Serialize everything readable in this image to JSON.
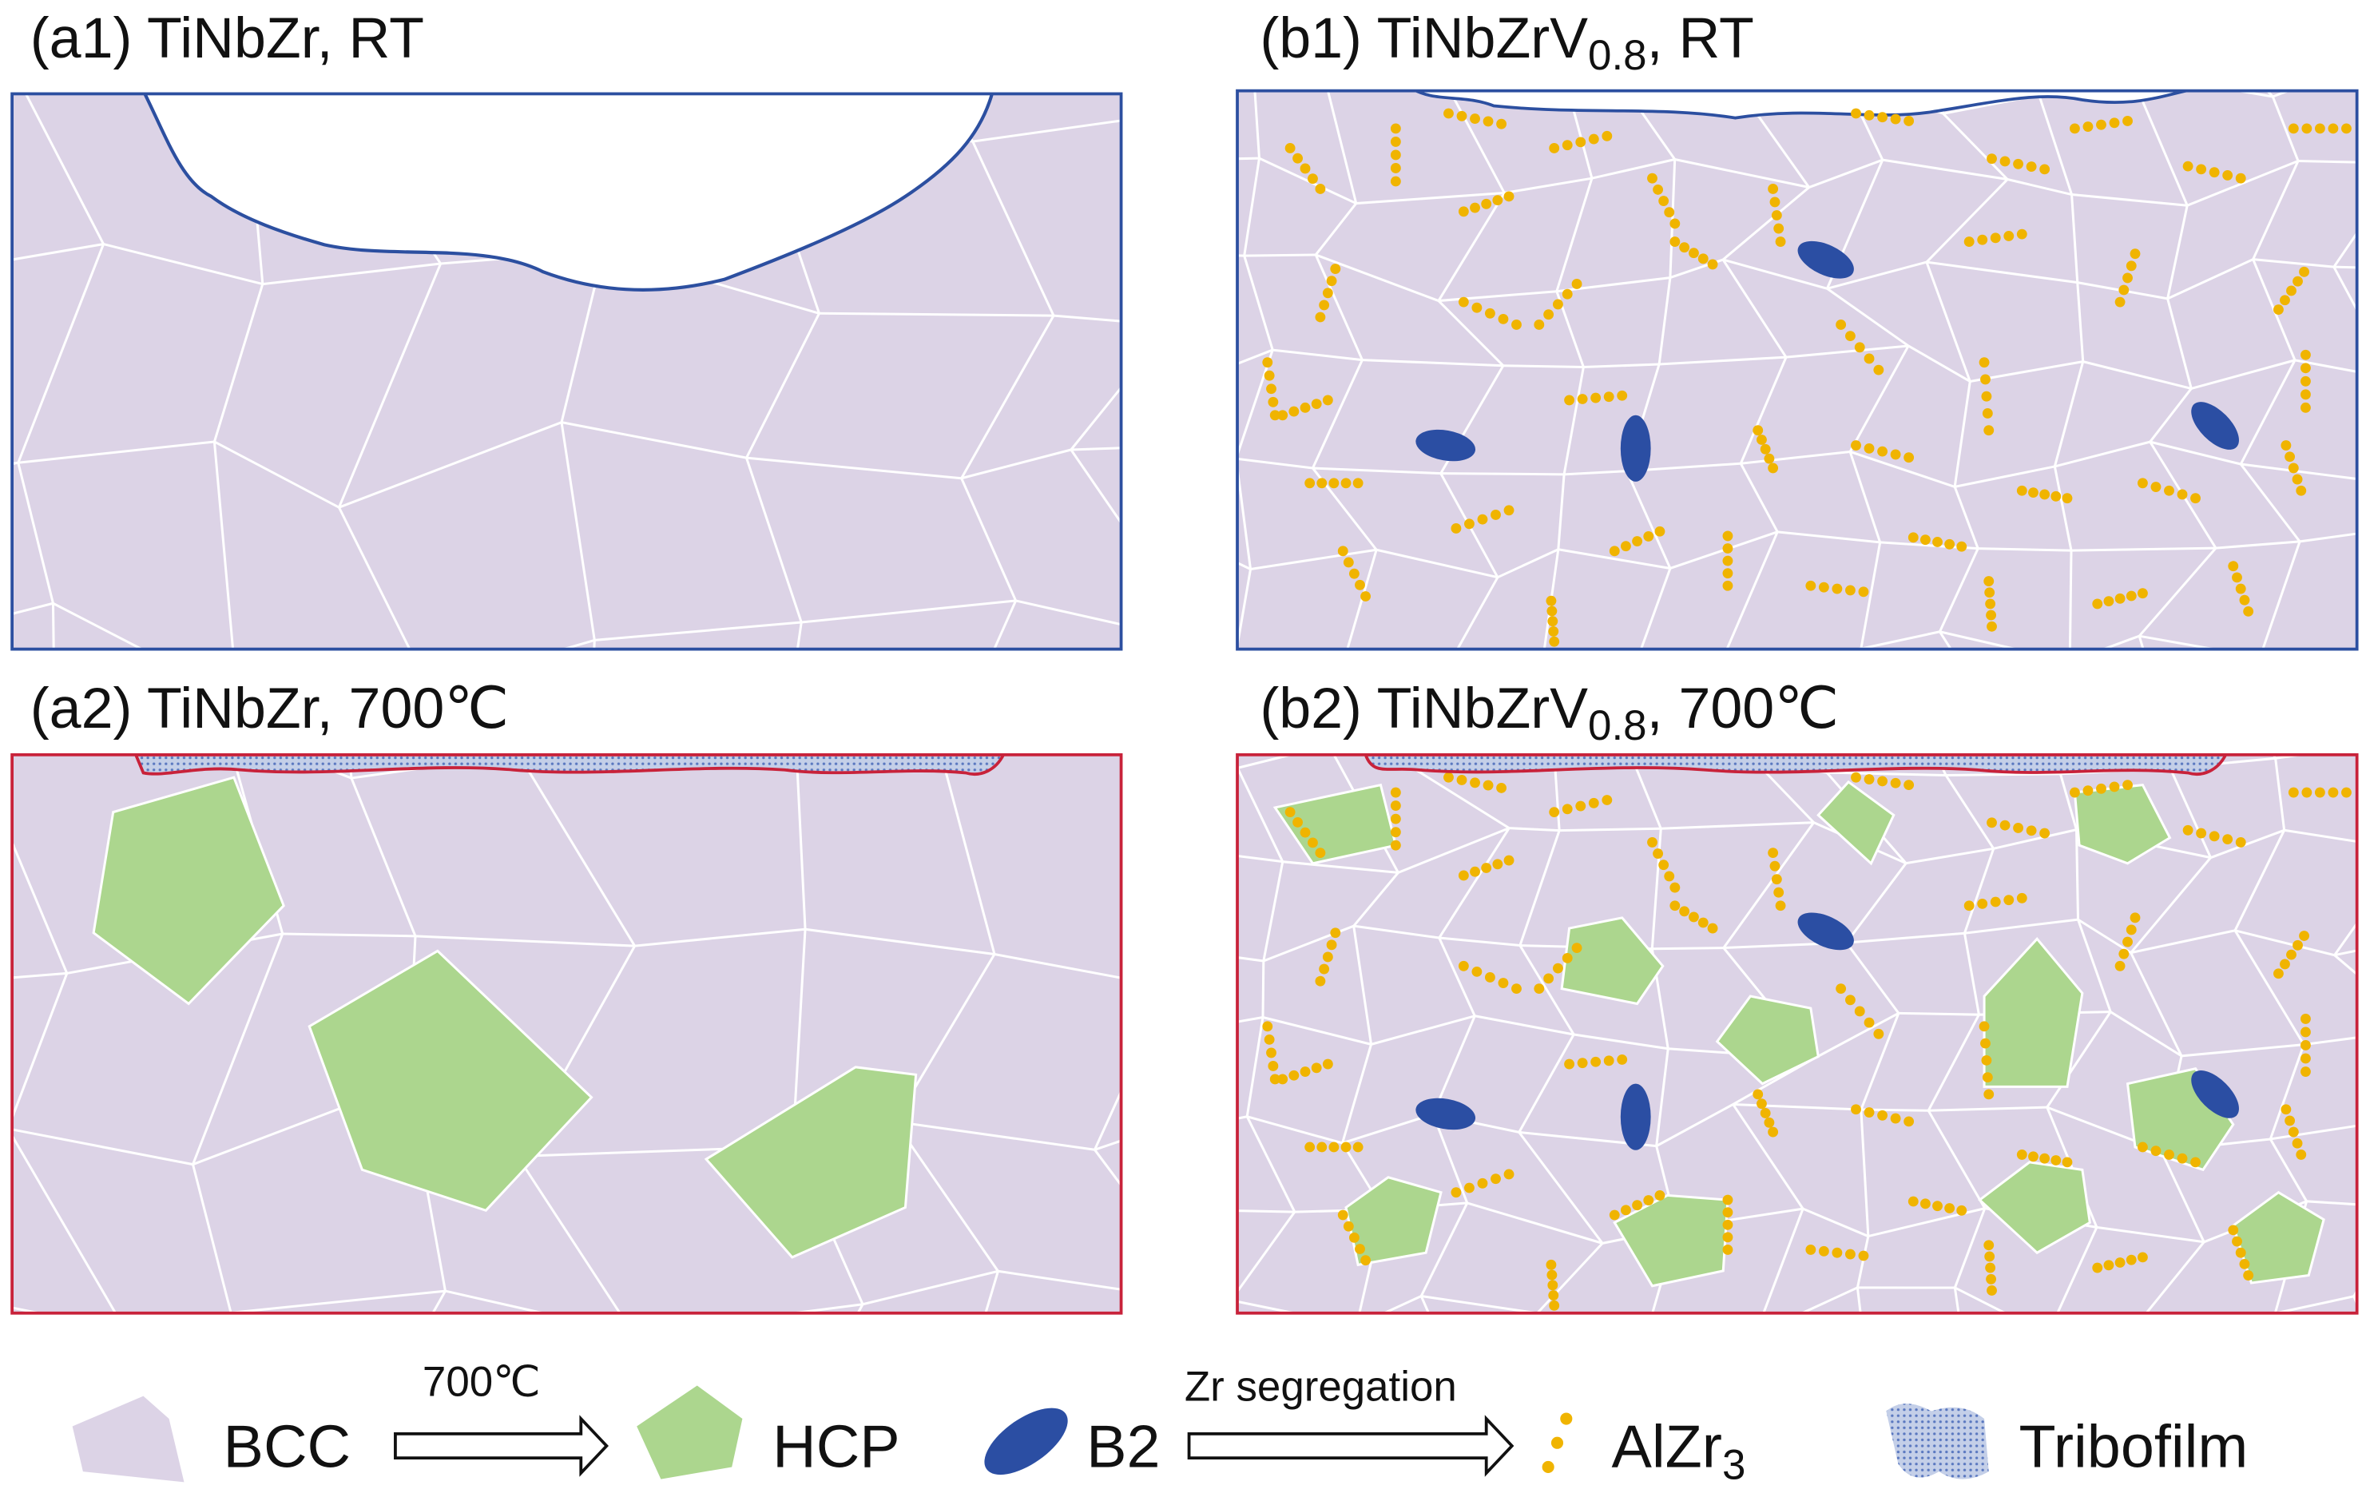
{
  "panels": [
    {
      "id": "a1",
      "label": "(a1) TiNbZr, RT"
    },
    {
      "id": "b1",
      "label_parts": [
        "(b1) TiNbZrV",
        "0.8",
        ", RT"
      ]
    },
    {
      "id": "a2",
      "label": "(a2) TiNbZr, 700℃"
    },
    {
      "id": "b2",
      "label_parts": [
        "(b2) TiNbZrV",
        "0.8",
        ", 700℃"
      ]
    }
  ],
  "legend": {
    "bcc": "BCC",
    "arrow1": "700℃",
    "hcp": "HCP",
    "b2": "B2",
    "arrow2": "Zr segregation",
    "alzr3": [
      "AlZr",
      "3"
    ],
    "tribofilm": "Tribofilm"
  }
}
